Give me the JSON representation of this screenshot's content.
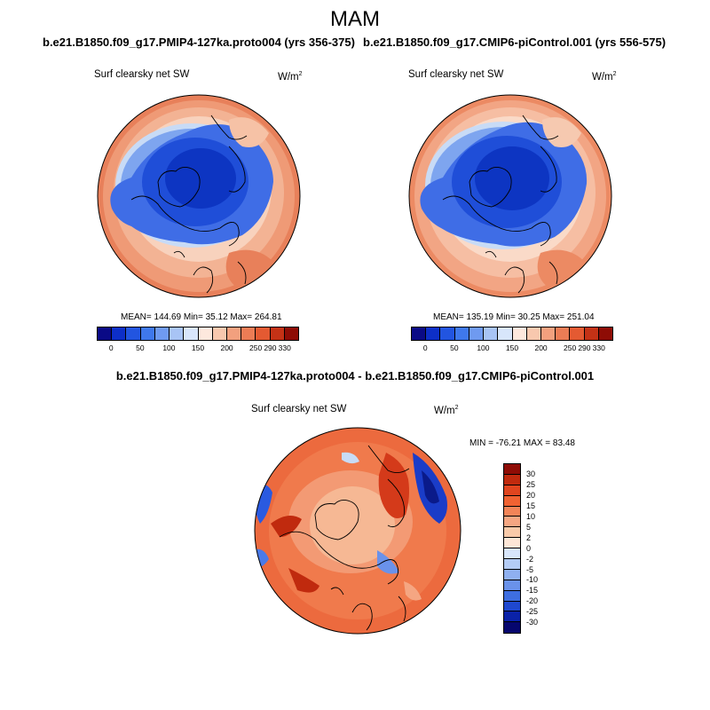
{
  "season": "MAM",
  "panels": {
    "left": {
      "case": "b.e21.B1850.f09_g17.PMIP4-127ka.proto004 (yrs 356-375)",
      "variable": "Surf clearsky net SW",
      "units_base": "W/m",
      "units_exp": "2",
      "stats": "MEAN= 144.69  Min=  35.12  Max= 264.81"
    },
    "right": {
      "case": "b.e21.B1850.f09_g17.CMIP6-piControl.001 (yrs 556-575)",
      "variable": "Surf clearsky net SW",
      "units_base": "W/m",
      "units_exp": "2",
      "stats": "MEAN= 135.19  Min=  30.25  Max= 251.04"
    },
    "diff": {
      "title": "b.e21.B1850.f09_g17.PMIP4-127ka.proto004 - b.e21.B1850.f09_g17.CMIP6-piControl.001",
      "variable": "Surf clearsky net SW",
      "units_base": "W/m",
      "units_exp": "2",
      "stats": "MIN = -76.21 MAX =  83.48"
    }
  },
  "abs_colorbar": {
    "colors": [
      "#0a0a86",
      "#0d2fc8",
      "#2255e0",
      "#3f78ec",
      "#6f9af0",
      "#a8c4f5",
      "#d8e6fb",
      "#fde8dd",
      "#f8c8ae",
      "#f2a07e",
      "#ec7c55",
      "#e45a32",
      "#c43216",
      "#8e0c05"
    ],
    "labels": [
      "0",
      "50",
      "100",
      "150",
      "200",
      "250",
      "290",
      "330"
    ]
  },
  "diff_colorbar": {
    "colors": [
      "#8e0c05",
      "#c02a0e",
      "#e0451f",
      "#f06232",
      "#f28458",
      "#f5a682",
      "#f8caa9",
      "#fde6d6",
      "#d8e6fb",
      "#b4ccf5",
      "#8fb0f0",
      "#6a92ea",
      "#3e6ee0",
      "#1f48d0",
      "#0a22a8",
      "#06066e"
    ],
    "labels": [
      "30",
      "25",
      "20",
      "15",
      "10",
      "5",
      "2",
      "0",
      "-2",
      "-5",
      "-10",
      "-15",
      "-20",
      "-25",
      "-30"
    ]
  }
}
